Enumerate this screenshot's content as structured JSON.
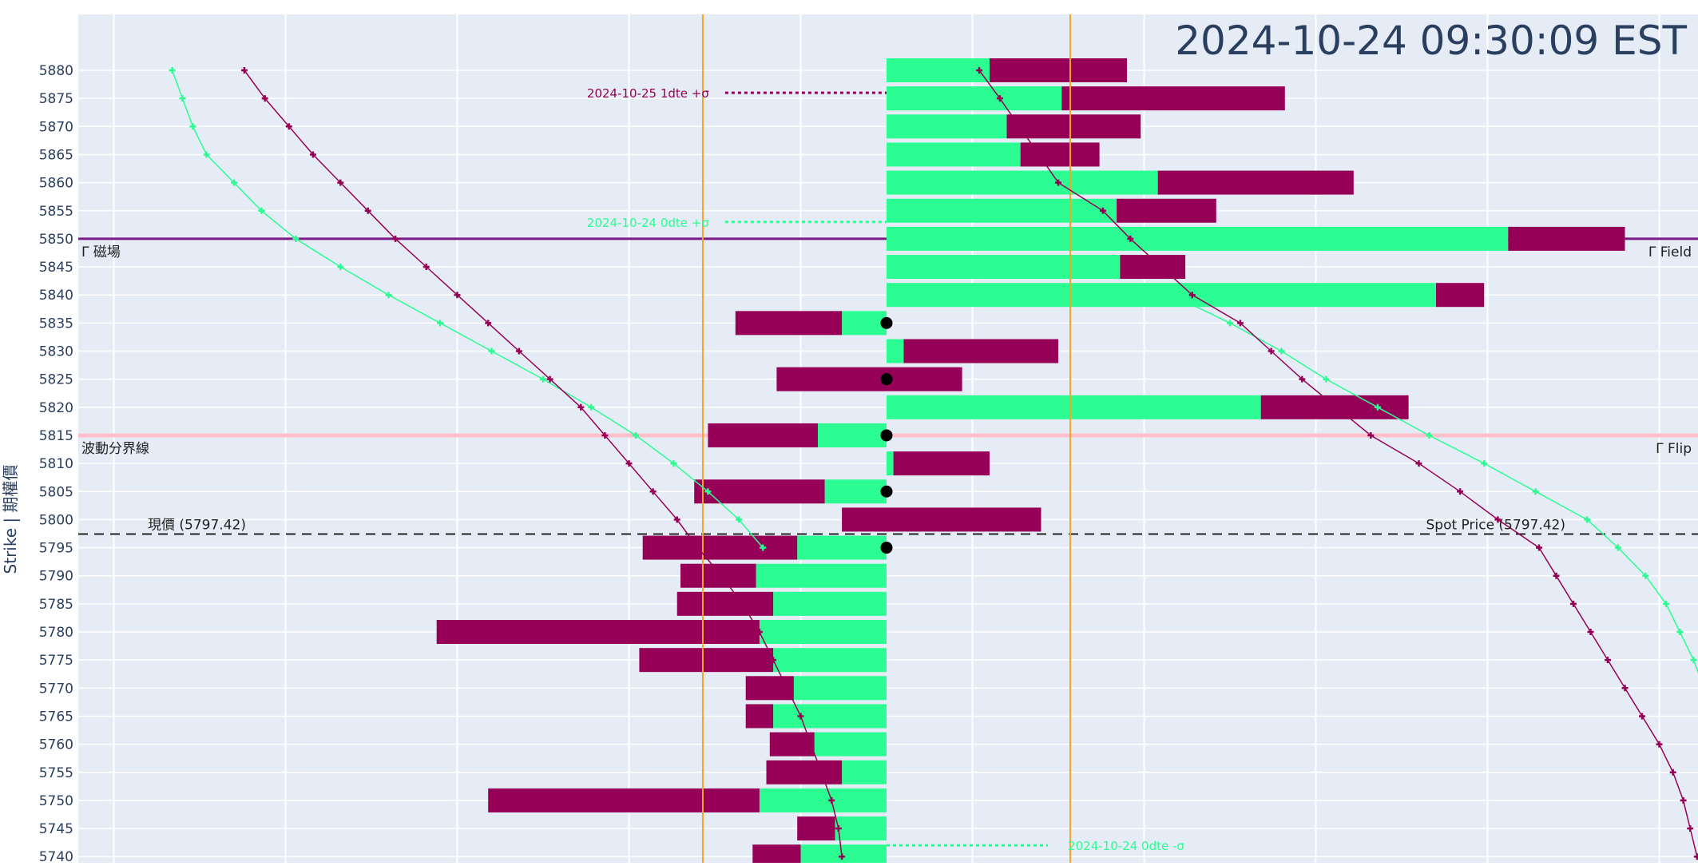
{
  "chart_data": {
    "type": "bar",
    "orientation": "horizontal-diverging",
    "timestamp": "2024-10-24 09:30:09 EST",
    "ylabel": "Strike | 期權價",
    "ylim": [
      5737.5,
      5882.5
    ],
    "xlim": [
      -2.35,
      2.35
    ],
    "grid": true,
    "colors": {
      "call": "#2cfd92",
      "put": "#960056",
      "background": "#e5ecf6",
      "expected_move_line": "#f5a623",
      "magnet_line": "#7b1a87",
      "flip_line": "#ffc0cb",
      "spot_line": "#222222",
      "timestamp": "#2a3f5f"
    },
    "strikes": [
      5880,
      5875,
      5870,
      5865,
      5860,
      5855,
      5850,
      5845,
      5840,
      5835,
      5830,
      5825,
      5820,
      5815,
      5810,
      5805,
      5800,
      5795,
      5790,
      5785,
      5780,
      5775,
      5770,
      5765,
      5760,
      5755,
      5750,
      5745,
      5740
    ],
    "series": [
      {
        "key": "call",
        "segments": [
          [
            0,
            0.3
          ],
          [
            0,
            0.51
          ],
          [
            0,
            0.35
          ],
          [
            0,
            0.39
          ],
          [
            0,
            0.79
          ],
          [
            0,
            0.67
          ],
          [
            0,
            1.81
          ],
          [
            0,
            0.68
          ],
          [
            0,
            1.6
          ],
          [
            -0.13,
            0
          ],
          [
            0,
            0.05
          ],
          null,
          [
            0,
            1.09
          ],
          [
            -0.2,
            0
          ],
          [
            0,
            0.02
          ],
          [
            -0.18,
            0
          ],
          null,
          [
            -0.26,
            0
          ],
          [
            -0.38,
            0
          ],
          [
            -0.33,
            0
          ],
          [
            -0.37,
            0
          ],
          [
            -0.33,
            0
          ],
          [
            -0.27,
            0
          ],
          [
            -0.33,
            0
          ],
          [
            -0.21,
            0
          ],
          [
            -0.13,
            0
          ],
          [
            -0.37,
            0
          ],
          [
            -0.15,
            0
          ],
          [
            -0.25,
            0
          ]
        ]
      },
      {
        "key": "put",
        "segments": [
          [
            0.3,
            0.7
          ],
          [
            0.51,
            1.16
          ],
          [
            0.35,
            0.74
          ],
          [
            0.39,
            0.62
          ],
          [
            0.79,
            1.36
          ],
          [
            0.67,
            0.96
          ],
          [
            1.81,
            2.15
          ],
          [
            0.68,
            0.87
          ],
          [
            1.6,
            1.74
          ],
          [
            -0.44,
            -0.13
          ],
          [
            0.05,
            0.5
          ],
          [
            -0.32,
            0.22
          ],
          [
            1.09,
            1.52
          ],
          [
            -0.52,
            -0.2
          ],
          [
            0.02,
            0.3
          ],
          [
            -0.56,
            -0.18
          ],
          [
            -0.13,
            0.45
          ],
          [
            -0.71,
            -0.26
          ],
          [
            -0.6,
            -0.38
          ],
          [
            -0.61,
            -0.33
          ],
          [
            -1.31,
            -0.37
          ],
          [
            -0.72,
            -0.33
          ],
          [
            -0.41,
            -0.27
          ],
          [
            -0.41,
            -0.33
          ],
          [
            -0.34,
            -0.21
          ],
          [
            -0.35,
            -0.13
          ],
          [
            -1.16,
            -0.37
          ],
          [
            -0.26,
            -0.15
          ],
          [
            -0.39,
            -0.25
          ]
        ]
      }
    ],
    "zero_dots": [
      5835,
      5825,
      5815,
      5805,
      5795
    ],
    "curves": [
      {
        "key": "green",
        "color": "#2cfd92",
        "left": [
          [
            -2.08,
            5880
          ],
          [
            -2.05,
            5875
          ],
          [
            -2.02,
            5870
          ],
          [
            -1.98,
            5865
          ],
          [
            -1.9,
            5860
          ],
          [
            -1.82,
            5855
          ],
          [
            -1.72,
            5850
          ],
          [
            -1.59,
            5845
          ],
          [
            -1.45,
            5840
          ],
          [
            -1.3,
            5835
          ],
          [
            -1.15,
            5830
          ],
          [
            -1.0,
            5825
          ],
          [
            -0.86,
            5820
          ],
          [
            -0.73,
            5815
          ],
          [
            -0.62,
            5810
          ],
          [
            -0.52,
            5805
          ],
          [
            -0.43,
            5800
          ],
          [
            -0.36,
            5795
          ]
        ],
        "right": [
          [
            0.83,
            5840
          ],
          [
            1.0,
            5835
          ],
          [
            1.15,
            5830
          ],
          [
            1.28,
            5825
          ],
          [
            1.43,
            5820
          ],
          [
            1.58,
            5815
          ],
          [
            1.74,
            5810
          ],
          [
            1.89,
            5805
          ],
          [
            2.04,
            5800
          ],
          [
            2.13,
            5795
          ],
          [
            2.21,
            5790
          ],
          [
            2.27,
            5785
          ],
          [
            2.31,
            5780
          ],
          [
            2.35,
            5775
          ],
          [
            2.38,
            5770
          ],
          [
            2.41,
            5765
          ],
          [
            2.43,
            5760
          ],
          [
            2.45,
            5755
          ],
          [
            2.46,
            5750
          ],
          [
            2.47,
            5745
          ],
          [
            2.48,
            5740
          ]
        ]
      },
      {
        "key": "purple",
        "color": "#960056",
        "left": [
          [
            -1.87,
            5880
          ],
          [
            -1.81,
            5875
          ],
          [
            -1.74,
            5870
          ],
          [
            -1.67,
            5865
          ],
          [
            -1.59,
            5860
          ],
          [
            -1.51,
            5855
          ],
          [
            -1.43,
            5850
          ],
          [
            -1.34,
            5845
          ],
          [
            -1.25,
            5840
          ],
          [
            -1.16,
            5835
          ],
          [
            -1.07,
            5830
          ],
          [
            -0.98,
            5825
          ],
          [
            -0.89,
            5820
          ],
          [
            -0.82,
            5815
          ],
          [
            -0.75,
            5810
          ],
          [
            -0.68,
            5805
          ],
          [
            -0.61,
            5800
          ],
          [
            -0.55,
            5795
          ],
          [
            -0.48,
            5790
          ],
          [
            -0.42,
            5785
          ],
          [
            -0.37,
            5780
          ],
          [
            -0.33,
            5775
          ],
          [
            -0.29,
            5770
          ],
          [
            -0.25,
            5765
          ],
          [
            -0.22,
            5760
          ],
          [
            -0.19,
            5755
          ],
          [
            -0.16,
            5750
          ],
          [
            -0.14,
            5745
          ],
          [
            -0.13,
            5740
          ]
        ],
        "right": [
          [
            0.27,
            5880
          ],
          [
            0.33,
            5875
          ],
          [
            0.5,
            5860
          ],
          [
            0.63,
            5855
          ],
          [
            0.71,
            5850
          ],
          [
            0.89,
            5840
          ],
          [
            1.03,
            5835
          ],
          [
            1.12,
            5830
          ],
          [
            1.21,
            5825
          ],
          [
            1.31,
            5820
          ],
          [
            1.41,
            5815
          ],
          [
            1.55,
            5810
          ],
          [
            1.67,
            5805
          ],
          [
            1.78,
            5800
          ],
          [
            1.9,
            5795
          ],
          [
            1.95,
            5790
          ],
          [
            2.0,
            5785
          ],
          [
            2.05,
            5780
          ],
          [
            2.1,
            5775
          ],
          [
            2.15,
            5770
          ],
          [
            2.2,
            5765
          ],
          [
            2.25,
            5760
          ],
          [
            2.29,
            5755
          ],
          [
            2.32,
            5750
          ],
          [
            2.34,
            5745
          ],
          [
            2.36,
            5740
          ]
        ]
      }
    ],
    "vertical_lines": [
      -0.535,
      0.535
    ],
    "horizontal_lines": [
      {
        "key": "magnet",
        "y": 5850,
        "color": "#7b1a87",
        "left_label": "Γ 磁場",
        "right_label": "Γ Field"
      },
      {
        "key": "flip",
        "y": 5815,
        "color": "#ffc0cb",
        "left_label": "波動分界線",
        "right_label": "Γ Flip"
      },
      {
        "key": "spot",
        "y": 5797.42,
        "color": "#222222",
        "left_label": "現價 (5797.42)",
        "right_label": "Spot Price (5797.42)"
      }
    ],
    "sigma_annotations": [
      {
        "text": "2024-10-25 1dte +σ",
        "y": 5876,
        "x_start": -0.47,
        "x_end": 0,
        "color": "#960056",
        "label_side": "left"
      },
      {
        "text": "2024-10-24 0dte +σ",
        "y": 5853,
        "x_start": -0.47,
        "x_end": 0,
        "color": "#2cfd92",
        "label_side": "left"
      },
      {
        "text": "2024-10-24 0dte -σ",
        "y": 5742,
        "x_start": 0,
        "x_end": 0.47,
        "color": "#2cfd92",
        "label_side": "right"
      }
    ]
  }
}
